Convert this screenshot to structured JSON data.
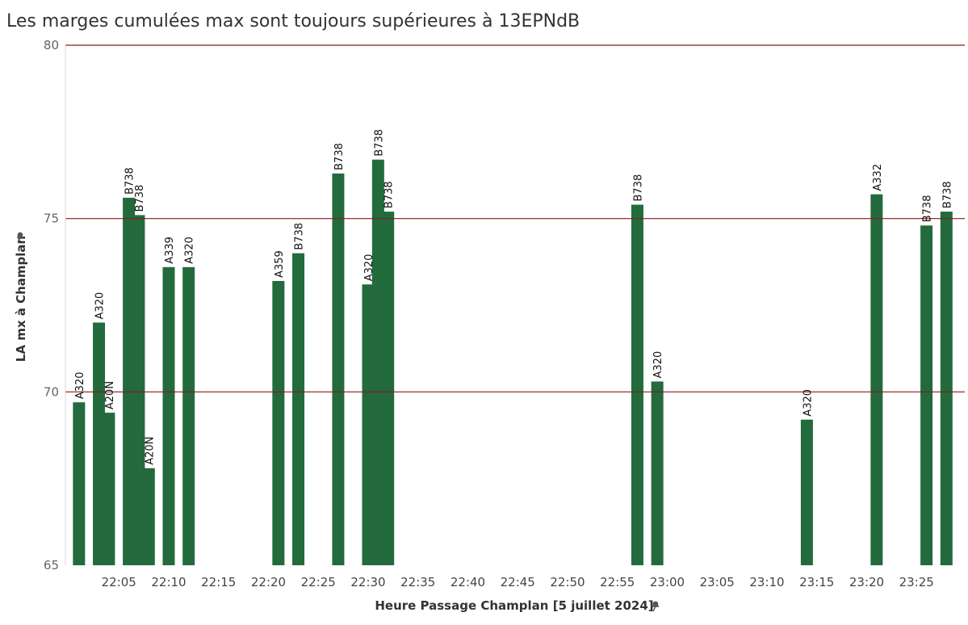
{
  "chart_data": {
    "type": "bar",
    "title": "Les marges cumulées max sont toujours supérieures à 13EPNdB",
    "xlabel": "Heure Passage Champlan [5 juillet 2024]",
    "ylabel": "LA mx à Champlan",
    "ylim": [
      65,
      80
    ],
    "yticks": [
      65,
      70,
      75,
      80
    ],
    "xlim": [
      "22:00",
      "23:30"
    ],
    "xticks": [
      "22:05",
      "22:10",
      "22:15",
      "22:20",
      "22:25",
      "22:30",
      "22:35",
      "22:40",
      "22:45",
      "22:50",
      "22:55",
      "23:00",
      "23:05",
      "23:10",
      "23:15",
      "23:20",
      "23:25"
    ],
    "reference_lines": [
      70,
      75,
      80
    ],
    "bar_color": "#236a3d",
    "reference_line_color": "#8b1a1a",
    "pin_icon": "pin-icon",
    "bars": [
      {
        "time": "22:01",
        "aircraft": "A320",
        "value": 69.7
      },
      {
        "time": "22:03",
        "aircraft": "A320",
        "value": 72.0
      },
      {
        "time": "22:04",
        "aircraft": "A20N",
        "value": 69.4
      },
      {
        "time": "22:06",
        "aircraft": "B738",
        "value": 75.6
      },
      {
        "time": "22:07",
        "aircraft": "B738",
        "value": 75.1
      },
      {
        "time": "22:08",
        "aircraft": "A20N",
        "value": 67.8
      },
      {
        "time": "22:10",
        "aircraft": "A339",
        "value": 73.6
      },
      {
        "time": "22:12",
        "aircraft": "A320",
        "value": 73.6
      },
      {
        "time": "22:21",
        "aircraft": "A359",
        "value": 73.2
      },
      {
        "time": "22:23",
        "aircraft": "B738",
        "value": 74.0
      },
      {
        "time": "22:27",
        "aircraft": "B738",
        "value": 76.3
      },
      {
        "time": "22:30",
        "aircraft": "A320",
        "value": 73.1
      },
      {
        "time": "22:31",
        "aircraft": "B738",
        "value": 76.7
      },
      {
        "time": "22:32",
        "aircraft": "B738",
        "value": 75.2
      },
      {
        "time": "22:57",
        "aircraft": "B738",
        "value": 75.4
      },
      {
        "time": "22:59",
        "aircraft": "A320",
        "value": 70.3
      },
      {
        "time": "23:14",
        "aircraft": "A320",
        "value": 69.2
      },
      {
        "time": "23:21",
        "aircraft": "A332",
        "value": 75.7
      },
      {
        "time": "23:26",
        "aircraft": "B738",
        "value": 74.8
      },
      {
        "time": "23:28",
        "aircraft": "B738",
        "value": 75.2
      }
    ]
  }
}
